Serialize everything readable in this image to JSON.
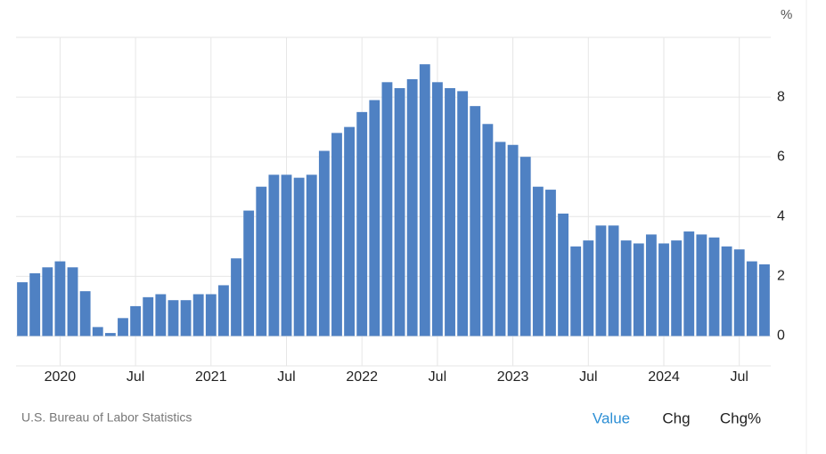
{
  "chart_data": {
    "type": "bar",
    "unit": "%",
    "source": "U.S. Bureau of Labor Statistics",
    "controls": [
      "Value",
      "Chg",
      "Chg%"
    ],
    "active_control": 0,
    "categories": [
      null,
      null,
      null,
      "2020",
      null,
      null,
      null,
      null,
      null,
      "Jul",
      null,
      null,
      null,
      null,
      null,
      "2021",
      null,
      null,
      null,
      null,
      null,
      "Jul",
      null,
      null,
      null,
      null,
      null,
      "2022",
      null,
      null,
      null,
      null,
      null,
      "Jul",
      null,
      null,
      null,
      null,
      null,
      "2023",
      null,
      null,
      null,
      null,
      null,
      "Jul",
      null,
      null,
      null,
      null,
      null,
      "2024",
      null,
      null,
      null,
      null,
      null,
      "Jul",
      null,
      null
    ],
    "values": [
      1.8,
      2.1,
      2.3,
      2.5,
      2.3,
      1.5,
      0.3,
      0.1,
      0.6,
      1.0,
      1.3,
      1.4,
      1.2,
      1.2,
      1.4,
      1.4,
      1.7,
      2.6,
      4.2,
      5.0,
      5.4,
      5.4,
      5.3,
      5.4,
      6.2,
      6.8,
      7.0,
      7.5,
      7.9,
      8.5,
      8.3,
      8.6,
      9.1,
      8.5,
      8.3,
      8.2,
      7.7,
      7.1,
      6.5,
      6.4,
      6.0,
      5.0,
      4.9,
      4.1,
      3.0,
      3.2,
      3.7,
      3.7,
      3.2,
      3.1,
      3.4,
      3.1,
      3.2,
      3.5,
      3.4,
      3.3,
      3.0,
      2.9,
      2.5,
      2.4
    ],
    "color": "#4f81c3",
    "ylim": [
      -1,
      10
    ],
    "yticks": [
      0,
      2,
      4,
      6,
      8
    ],
    "grid": true
  }
}
